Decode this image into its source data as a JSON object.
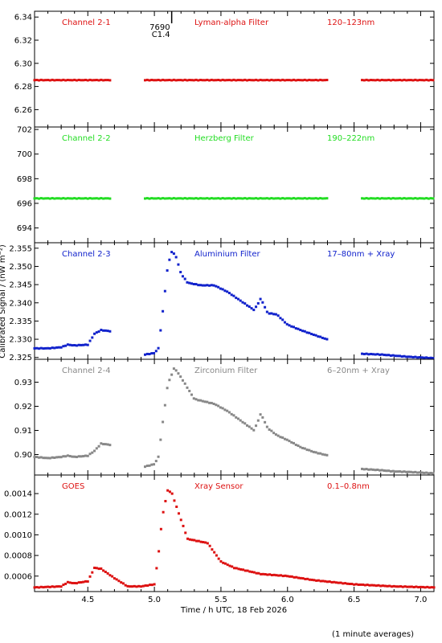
{
  "ylabel": "Calibrated Signal / (nW m⁻²)",
  "xlabel": "Time / h UTC, 18 Feb 2026",
  "footnote": "(1 minute averages)",
  "flare_marker": {
    "time": 5.13,
    "id": "7690",
    "class": "C1.4"
  },
  "chart_data": [
    {
      "type": "scatter",
      "channel": "Channel 2-1",
      "filter": "Lyman-alpha Filter",
      "band": "120–123nm",
      "color": "#dd1111",
      "ylim": [
        6.245,
        6.345
      ],
      "yticks": [
        "6.26",
        "6.28",
        "6.30",
        "6.32",
        "6.34"
      ],
      "xlim": [
        4.1,
        7.1
      ],
      "segments": [
        {
          "x": [
            4.1,
            4.67
          ],
          "y": [
            6.2855,
            6.2855
          ]
        },
        {
          "x": [
            4.93,
            6.31
          ],
          "y": [
            6.2855,
            6.2855
          ]
        },
        {
          "x": [
            6.56,
            7.1
          ],
          "y": [
            6.2855,
            6.2855
          ]
        }
      ]
    },
    {
      "type": "scatter",
      "channel": "Channel 2-2",
      "filter": "Herzberg Filter",
      "band": "190–222nm",
      "color": "#22dd22",
      "ylim": [
        692.8,
        702.2
      ],
      "yticks": [
        "694",
        "696",
        "698",
        "700",
        "702"
      ],
      "xlim": [
        4.1,
        7.1
      ],
      "segments": [
        {
          "x": [
            4.1,
            4.67
          ],
          "y": [
            696.4,
            696.4
          ]
        },
        {
          "x": [
            4.93,
            6.31
          ],
          "y": [
            696.4,
            696.4
          ]
        },
        {
          "x": [
            6.56,
            7.1
          ],
          "y": [
            696.4,
            696.4
          ]
        }
      ]
    },
    {
      "type": "scatter",
      "channel": "Channel 2-3",
      "filter": "Aluminium Filter",
      "band": "17–80nm + Xray",
      "color": "#1122cc",
      "ylim": [
        2.3245,
        2.3565
      ],
      "yticks": [
        "2.325",
        "2.330",
        "2.335",
        "2.340",
        "2.345",
        "2.350",
        "2.355"
      ],
      "xlim": [
        4.1,
        7.1
      ],
      "segments": [
        {
          "x": [
            4.1,
            4.2,
            4.3,
            4.35,
            4.4,
            4.5,
            4.55,
            4.6,
            4.67
          ],
          "y": [
            2.3275,
            2.3275,
            2.3278,
            2.3285,
            2.3283,
            2.3285,
            2.3315,
            2.3325,
            2.3322
          ]
        },
        {
          "x": [
            4.93,
            5.0,
            5.03,
            5.06,
            5.1,
            5.13,
            5.16,
            5.2,
            5.25,
            5.35,
            5.45,
            5.55,
            5.65,
            5.75,
            5.8,
            5.85,
            5.92,
            6.0,
            6.1,
            6.2,
            6.31
          ],
          "y": [
            2.3258,
            2.3262,
            2.3275,
            2.3365,
            2.35,
            2.354,
            2.353,
            2.348,
            2.3455,
            2.3448,
            2.3448,
            2.343,
            2.3405,
            2.338,
            2.3412,
            2.3372,
            2.3368,
            2.334,
            2.3325,
            2.3312,
            2.3298
          ]
        },
        {
          "x": [
            6.56,
            6.7,
            6.8,
            6.9,
            7.0,
            7.1
          ],
          "y": [
            2.326,
            2.3258,
            2.3255,
            2.3252,
            2.325,
            2.3248
          ]
        }
      ]
    },
    {
      "type": "scatter",
      "channel": "Channel 2-4",
      "filter": "Zirconium Filter",
      "band": "6–20nm + Xray",
      "color": "#888888",
      "ylim": [
        0.8915,
        0.9395
      ],
      "yticks": [
        "0.90",
        "0.91",
        "0.92",
        "0.93"
      ],
      "xlim": [
        4.1,
        7.1
      ],
      "segments": [
        {
          "x": [
            4.1,
            4.2,
            4.3,
            4.35,
            4.4,
            4.5,
            4.55,
            4.6,
            4.67
          ],
          "y": [
            0.899,
            0.8985,
            0.899,
            0.8995,
            0.899,
            0.8995,
            0.9015,
            0.9045,
            0.904
          ]
        },
        {
          "x": [
            4.93,
            5.0,
            5.03,
            5.06,
            5.1,
            5.15,
            5.2,
            5.3,
            5.45,
            5.55,
            5.65,
            5.75,
            5.8,
            5.85,
            5.92,
            6.0,
            6.1,
            6.2,
            6.31
          ],
          "y": [
            0.895,
            0.896,
            0.899,
            0.912,
            0.929,
            0.936,
            0.932,
            0.923,
            0.921,
            0.918,
            0.914,
            0.91,
            0.917,
            0.911,
            0.908,
            0.906,
            0.903,
            0.901,
            0.8995
          ]
        },
        {
          "x": [
            6.56,
            6.7,
            6.8,
            6.9,
            7.0,
            7.1
          ],
          "y": [
            0.894,
            0.8935,
            0.893,
            0.8928,
            0.8925,
            0.8922
          ]
        }
      ]
    },
    {
      "type": "scatter",
      "channel": "GOES",
      "filter": "Xray Sensor",
      "band": "0.1–0.8nm",
      "color": "#dd1111",
      "ylim": [
        0.00045,
        0.00158
      ],
      "yticks": [
        "0.0006",
        "0.0008",
        "0.0010",
        "0.0012",
        "0.0014"
      ],
      "xlim": [
        4.1,
        7.1
      ],
      "segments": [
        {
          "x": [
            4.1,
            4.3,
            4.35,
            4.4,
            4.5,
            4.55,
            4.6,
            4.7,
            4.8,
            4.9,
            5.0,
            5.03,
            5.06,
            5.1,
            5.13,
            5.18,
            5.25,
            5.4,
            5.5,
            5.6,
            5.8,
            6.0,
            6.2,
            6.5,
            6.8,
            7.1
          ],
          "y": [
            0.00049,
            0.0005,
            0.00054,
            0.00053,
            0.00055,
            0.00068,
            0.00067,
            0.00058,
            0.0005,
            0.0005,
            0.00052,
            0.0008,
            0.00118,
            0.00143,
            0.00141,
            0.00122,
            0.00096,
            0.00092,
            0.00074,
            0.00068,
            0.00062,
            0.0006,
            0.00056,
            0.00052,
            0.0005,
            0.00049
          ]
        }
      ]
    }
  ],
  "x_axis": {
    "ticks": [
      "4.5",
      "5.0",
      "5.5",
      "6.0",
      "6.5",
      "7.0"
    ]
  }
}
